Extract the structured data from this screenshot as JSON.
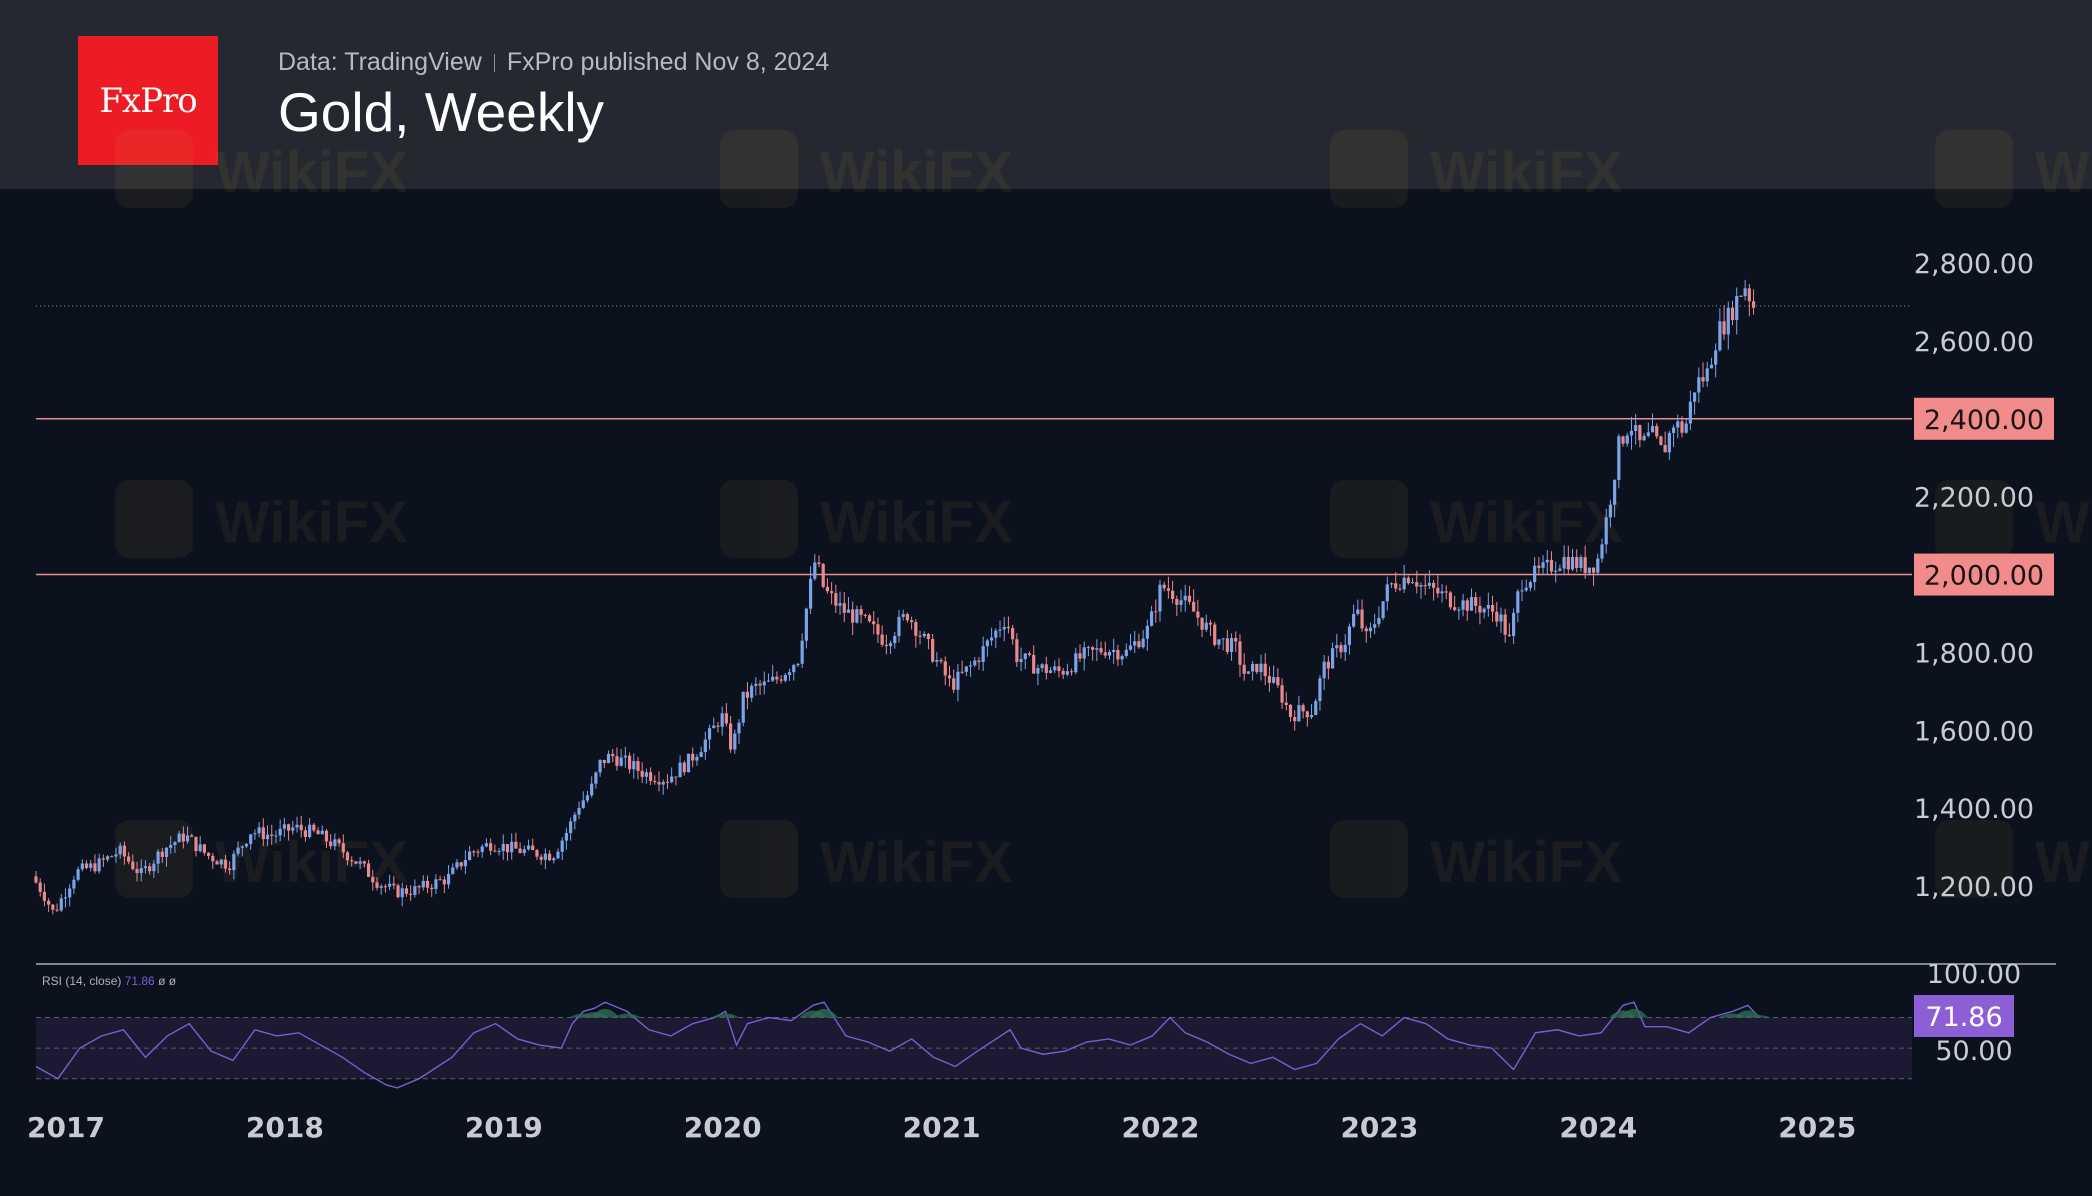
{
  "header": {
    "logo_text": "FxPro",
    "data_source": "Data: TradingView",
    "published": "FxPro published Nov 8, 2024",
    "title": "Gold, Weekly"
  },
  "watermark": {
    "text": "WikiFX"
  },
  "colors": {
    "background": "#0b111d",
    "header": "#252830",
    "up_candle": "#7aa3e8",
    "down_candle": "#e8898e",
    "level_line": "#e88e8e",
    "level_label_bg": "#f28c8c",
    "rsi_line": "#7a5fd0",
    "rsi_label_bg": "#8c5fd6",
    "axis_text": "#c8cbd2"
  },
  "chart_data": [
    {
      "type": "candlestick",
      "title": "Gold, Weekly",
      "x_ticks": [
        "2017",
        "2018",
        "2019",
        "2020",
        "2021",
        "2022",
        "2023",
        "2024",
        "2025"
      ],
      "y_ticks": [
        "1,200.00",
        "1,400.00",
        "1,600.00",
        "1,800.00",
        "2,000.00",
        "2,200.00",
        "2,400.00",
        "2,600.00",
        "2,800.00"
      ],
      "ylim": [
        1000,
        2990
      ],
      "xlim": [
        2017.0,
        2025.57
      ],
      "horizontal_levels": [
        {
          "value": 2400,
          "label": "2,400.00"
        },
        {
          "value": 2000,
          "label": "2,000.00"
        }
      ],
      "last_close_dotted_line": 2690,
      "path": [
        [
          2017.0,
          1225
        ],
        [
          2017.05,
          1185
        ],
        [
          2017.1,
          1130
        ],
        [
          2017.2,
          1235
        ],
        [
          2017.3,
          1255
        ],
        [
          2017.4,
          1290
        ],
        [
          2017.5,
          1230
        ],
        [
          2017.6,
          1295
        ],
        [
          2017.7,
          1330
        ],
        [
          2017.8,
          1280
        ],
        [
          2017.9,
          1255
        ],
        [
          2018.0,
          1340
        ],
        [
          2018.1,
          1330
        ],
        [
          2018.2,
          1350
        ],
        [
          2018.3,
          1335
        ],
        [
          2018.4,
          1300
        ],
        [
          2018.5,
          1255
        ],
        [
          2018.58,
          1210
        ],
        [
          2018.66,
          1185
        ],
        [
          2018.75,
          1190
        ],
        [
          2018.9,
          1220
        ],
        [
          2019.0,
          1285
        ],
        [
          2019.1,
          1310
        ],
        [
          2019.2,
          1295
        ],
        [
          2019.3,
          1285
        ],
        [
          2019.38,
          1280
        ],
        [
          2019.45,
          1345
        ],
        [
          2019.5,
          1410
        ],
        [
          2019.55,
          1440
        ],
        [
          2019.6,
          1520
        ],
        [
          2019.65,
          1535
        ],
        [
          2019.8,
          1490
        ],
        [
          2019.9,
          1475
        ],
        [
          2020.0,
          1520
        ],
        [
          2020.1,
          1590
        ],
        [
          2020.15,
          1640
        ],
        [
          2020.2,
          1550
        ],
        [
          2020.25,
          1680
        ],
        [
          2020.3,
          1710
        ],
        [
          2020.35,
          1715
        ],
        [
          2020.4,
          1730
        ],
        [
          2020.5,
          1785
        ],
        [
          2020.55,
          1950
        ],
        [
          2020.58,
          2040
        ],
        [
          2020.62,
          1960
        ],
        [
          2020.7,
          1910
        ],
        [
          2020.8,
          1880
        ],
        [
          2020.9,
          1830
        ],
        [
          2021.0,
          1900
        ],
        [
          2021.1,
          1810
        ],
        [
          2021.2,
          1715
        ],
        [
          2021.3,
          1770
        ],
        [
          2021.4,
          1850
        ],
        [
          2021.45,
          1890
        ],
        [
          2021.5,
          1790
        ],
        [
          2021.6,
          1760
        ],
        [
          2021.7,
          1750
        ],
        [
          2021.8,
          1790
        ],
        [
          2021.9,
          1810
        ],
        [
          2022.0,
          1800
        ],
        [
          2022.1,
          1860
        ],
        [
          2022.16,
          1970
        ],
        [
          2022.2,
          1960
        ],
        [
          2022.3,
          1910
        ],
        [
          2022.4,
          1840
        ],
        [
          2022.5,
          1810
        ],
        [
          2022.55,
          1730
        ],
        [
          2022.6,
          1770
        ],
        [
          2022.7,
          1700
        ],
        [
          2022.75,
          1640
        ],
        [
          2022.8,
          1650
        ],
        [
          2022.85,
          1650
        ],
        [
          2022.9,
          1760
        ],
        [
          2023.0,
          1830
        ],
        [
          2023.05,
          1910
        ],
        [
          2023.1,
          1830
        ],
        [
          2023.2,
          1970
        ],
        [
          2023.3,
          2000
        ],
        [
          2023.35,
          1970
        ],
        [
          2023.4,
          1960
        ],
        [
          2023.5,
          1930
        ],
        [
          2023.6,
          1920
        ],
        [
          2023.7,
          1900
        ],
        [
          2023.75,
          1830
        ],
        [
          2023.8,
          1980
        ],
        [
          2023.9,
          2010
        ],
        [
          2024.0,
          2040
        ],
        [
          2024.1,
          2020
        ],
        [
          2024.15,
          2030
        ],
        [
          2024.2,
          2160
        ],
        [
          2024.25,
          2330
        ],
        [
          2024.3,
          2390
        ],
        [
          2024.35,
          2330
        ],
        [
          2024.4,
          2360
        ],
        [
          2024.45,
          2310
        ],
        [
          2024.5,
          2390
        ],
        [
          2024.55,
          2370
        ],
        [
          2024.6,
          2490
        ],
        [
          2024.65,
          2510
        ],
        [
          2024.7,
          2620
        ],
        [
          2024.75,
          2660
        ],
        [
          2024.8,
          2720
        ],
        [
          2024.83,
          2745
        ],
        [
          2024.86,
          2690
        ]
      ]
    },
    {
      "type": "line",
      "title": "RSI (14, close)",
      "series_label": "RSI (14, close)",
      "current_value": "71.86",
      "extra_labels": [
        "ø",
        "ø"
      ],
      "y_ticks": [
        "100.00",
        "50.00"
      ],
      "ylim": [
        20,
        105
      ],
      "band": [
        30,
        70
      ],
      "path": [
        [
          2017.0,
          38
        ],
        [
          2017.1,
          30
        ],
        [
          2017.2,
          50
        ],
        [
          2017.3,
          58
        ],
        [
          2017.4,
          62
        ],
        [
          2017.5,
          44
        ],
        [
          2017.6,
          58
        ],
        [
          2017.7,
          66
        ],
        [
          2017.8,
          48
        ],
        [
          2017.9,
          42
        ],
        [
          2018.0,
          62
        ],
        [
          2018.1,
          58
        ],
        [
          2018.2,
          60
        ],
        [
          2018.3,
          52
        ],
        [
          2018.4,
          44
        ],
        [
          2018.5,
          34
        ],
        [
          2018.6,
          26
        ],
        [
          2018.65,
          24
        ],
        [
          2018.75,
          30
        ],
        [
          2018.9,
          44
        ],
        [
          2019.0,
          60
        ],
        [
          2019.1,
          66
        ],
        [
          2019.2,
          56
        ],
        [
          2019.3,
          52
        ],
        [
          2019.4,
          50
        ],
        [
          2019.45,
          66
        ],
        [
          2019.5,
          74
        ],
        [
          2019.55,
          76
        ],
        [
          2019.6,
          80
        ],
        [
          2019.7,
          74
        ],
        [
          2019.8,
          62
        ],
        [
          2019.9,
          58
        ],
        [
          2020.0,
          66
        ],
        [
          2020.1,
          70
        ],
        [
          2020.15,
          74
        ],
        [
          2020.2,
          52
        ],
        [
          2020.25,
          66
        ],
        [
          2020.35,
          70
        ],
        [
          2020.45,
          68
        ],
        [
          2020.55,
          78
        ],
        [
          2020.6,
          80
        ],
        [
          2020.7,
          58
        ],
        [
          2020.8,
          54
        ],
        [
          2020.9,
          48
        ],
        [
          2021.0,
          56
        ],
        [
          2021.1,
          44
        ],
        [
          2021.2,
          38
        ],
        [
          2021.3,
          48
        ],
        [
          2021.45,
          62
        ],
        [
          2021.5,
          50
        ],
        [
          2021.6,
          46
        ],
        [
          2021.7,
          48
        ],
        [
          2021.8,
          54
        ],
        [
          2021.9,
          56
        ],
        [
          2022.0,
          52
        ],
        [
          2022.1,
          58
        ],
        [
          2022.18,
          70
        ],
        [
          2022.25,
          60
        ],
        [
          2022.35,
          54
        ],
        [
          2022.45,
          46
        ],
        [
          2022.55,
          40
        ],
        [
          2022.65,
          44
        ],
        [
          2022.75,
          36
        ],
        [
          2022.85,
          40
        ],
        [
          2022.95,
          56
        ],
        [
          2023.05,
          66
        ],
        [
          2023.15,
          58
        ],
        [
          2023.25,
          70
        ],
        [
          2023.35,
          66
        ],
        [
          2023.45,
          56
        ],
        [
          2023.55,
          52
        ],
        [
          2023.65,
          50
        ],
        [
          2023.75,
          36
        ],
        [
          2023.85,
          60
        ],
        [
          2023.95,
          62
        ],
        [
          2024.05,
          58
        ],
        [
          2024.15,
          60
        ],
        [
          2024.25,
          78
        ],
        [
          2024.3,
          80
        ],
        [
          2024.35,
          64
        ],
        [
          2024.45,
          64
        ],
        [
          2024.55,
          60
        ],
        [
          2024.65,
          70
        ],
        [
          2024.75,
          74
        ],
        [
          2024.82,
          78
        ],
        [
          2024.86,
          72
        ]
      ]
    }
  ]
}
